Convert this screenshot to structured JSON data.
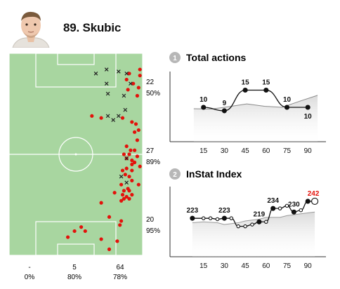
{
  "player": {
    "number_name": "89. Skubic"
  },
  "pitch": {
    "zones": [
      {
        "count": "22",
        "percent": "50%"
      },
      {
        "count": "27",
        "percent": "89%"
      },
      {
        "count": "20",
        "percent": "95%"
      }
    ],
    "bottom_columns": [
      {
        "count": "-",
        "percent": "0%"
      },
      {
        "count": "5",
        "percent": "80%"
      },
      {
        "count": "64",
        "percent": "78%"
      }
    ],
    "colors": {
      "grass": "#a8d6a0",
      "line": "#ffffff",
      "successful": "#e3120b",
      "unsuccessful": "#222222"
    },
    "actions": {
      "successful": [
        [
          0.98,
          0.08
        ],
        [
          0.98,
          0.11
        ],
        [
          0.93,
          0.15
        ],
        [
          0.97,
          0.17
        ],
        [
          0.96,
          0.21
        ],
        [
          0.89,
          0.18
        ],
        [
          0.88,
          0.13
        ],
        [
          0.9,
          0.1
        ],
        [
          0.62,
          0.31
        ],
        [
          0.69,
          0.32
        ],
        [
          0.85,
          0.32
        ],
        [
          0.92,
          0.34
        ],
        [
          0.95,
          0.35
        ],
        [
          0.97,
          0.38
        ],
        [
          0.94,
          0.39
        ],
        [
          0.96,
          0.43
        ],
        [
          0.88,
          0.46
        ],
        [
          0.91,
          0.48
        ],
        [
          0.94,
          0.48
        ],
        [
          0.86,
          0.5
        ],
        [
          0.9,
          0.5
        ],
        [
          0.96,
          0.51
        ],
        [
          0.88,
          0.52
        ],
        [
          0.92,
          0.53
        ],
        [
          0.94,
          0.54
        ],
        [
          0.92,
          0.55
        ],
        [
          0.98,
          0.56
        ],
        [
          0.88,
          0.57
        ],
        [
          0.85,
          0.58
        ],
        [
          0.92,
          0.58
        ],
        [
          0.87,
          0.6
        ],
        [
          0.9,
          0.61
        ],
        [
          0.92,
          0.63
        ],
        [
          0.84,
          0.65
        ],
        [
          0.97,
          0.65
        ],
        [
          0.89,
          0.67
        ],
        [
          0.86,
          0.68
        ],
        [
          0.9,
          0.68
        ],
        [
          0.79,
          0.69
        ],
        [
          0.85,
          0.7
        ],
        [
          0.92,
          0.7
        ],
        [
          0.88,
          0.71
        ],
        [
          0.86,
          0.72
        ],
        [
          0.9,
          0.72
        ],
        [
          0.84,
          0.73
        ],
        [
          0.69,
          0.74
        ],
        [
          0.75,
          0.81
        ],
        [
          0.84,
          0.83
        ],
        [
          0.83,
          0.85
        ],
        [
          0.54,
          0.86
        ],
        [
          0.49,
          0.88
        ],
        [
          0.57,
          0.88
        ],
        [
          0.44,
          0.91
        ],
        [
          0.69,
          0.92
        ],
        [
          0.81,
          0.93
        ],
        [
          0.75,
          0.97
        ]
      ],
      "unsuccessful": [
        [
          0.65,
          0.1
        ],
        [
          0.73,
          0.08
        ],
        [
          0.82,
          0.09
        ],
        [
          0.88,
          0.1
        ],
        [
          0.91,
          0.15
        ],
        [
          0.73,
          0.15
        ],
        [
          0.86,
          0.21
        ],
        [
          0.74,
          0.2
        ],
        [
          0.87,
          0.28
        ],
        [
          0.82,
          0.31
        ],
        [
          0.74,
          0.31
        ],
        [
          0.78,
          0.33
        ],
        [
          0.88,
          0.52
        ],
        [
          0.84,
          0.61
        ],
        [
          0.88,
          0.64
        ]
      ]
    }
  },
  "total_actions": {
    "index": "1",
    "title": "Total actions",
    "chart_data": {
      "type": "line",
      "x": [
        15,
        30,
        45,
        60,
        75,
        90
      ],
      "values": [
        10,
        9,
        15,
        15,
        10,
        10
      ],
      "point_labels": [
        "10",
        "9",
        "15",
        "15",
        "10",
        "10"
      ],
      "x_tick_labels": [
        "15",
        "30",
        "45",
        "60",
        "75",
        "90"
      ],
      "ylim": [
        0,
        20
      ],
      "average_line": [
        9.6,
        9.5,
        10.2,
        11.0,
        10.3,
        10.0,
        11.8,
        13.5
      ],
      "colors": {
        "line": "#111111",
        "average": "#8a8a8a",
        "highlight": "#e3120b"
      }
    }
  },
  "instat_index": {
    "index": "2",
    "title": "InStat Index",
    "chart_data": {
      "type": "line",
      "x": [
        7,
        15,
        20,
        25,
        30,
        35,
        40,
        45,
        50,
        55,
        60,
        65,
        70,
        75,
        80,
        85,
        90,
        95
      ],
      "values": [
        223,
        223,
        223,
        222,
        223,
        223,
        214,
        214,
        216,
        219,
        219,
        234,
        234,
        237,
        230,
        232,
        242,
        242
      ],
      "point_labels": [
        {
          "index": 0,
          "text": "223"
        },
        {
          "index": 4,
          "text": "223"
        },
        {
          "index": 9,
          "text": "219"
        },
        {
          "index": 11,
          "text": "234"
        },
        {
          "index": 14,
          "text": "230"
        },
        {
          "index": 17,
          "text": "242",
          "highlight": true
        }
      ],
      "x_tick_labels": [
        "15",
        "30",
        "45",
        "60",
        "75",
        "90"
      ],
      "ylim": [
        180,
        260
      ],
      "average_line": [
        [
          7,
          218
        ],
        [
          15,
          219
        ],
        [
          25,
          218
        ],
        [
          30,
          216
        ],
        [
          40,
          218
        ],
        [
          45,
          220
        ],
        [
          55,
          222
        ],
        [
          60,
          224
        ],
        [
          70,
          224
        ],
        [
          75,
          226
        ],
        [
          85,
          228
        ],
        [
          95,
          230
        ]
      ],
      "colors": {
        "line": "#111111",
        "average": "#9a9a9a",
        "highlight": "#e3120b"
      }
    }
  }
}
